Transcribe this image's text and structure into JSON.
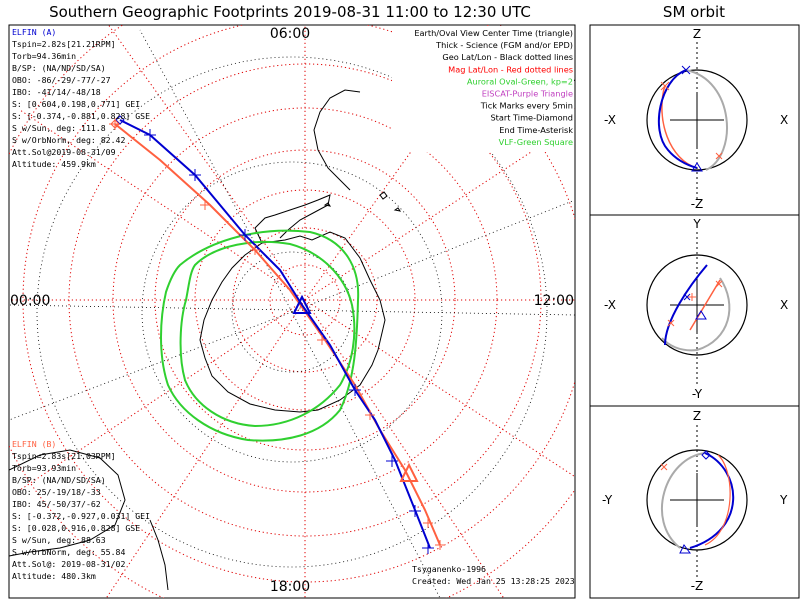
{
  "title": "Southern Geographic Footprints 2019-08-31 11:00 to 12:30 UTC",
  "sm_title": "SM orbit",
  "hour_labels": {
    "top": "06:00",
    "left": "00:00",
    "right": "12:00",
    "bottom": "18:00"
  },
  "elfin_a": {
    "name": "ELFIN (A)",
    "color": "#0000d0",
    "lines": [
      "Tspin=2.82s[21.21RPM]",
      "Torb=94.36min",
      "B/SP: (NA/ND/SD/SA)",
      "OBO: -86/-29/-77/-27",
      "IBO: -41/14/-48/18",
      "S: [0.604,0.198,0.771] GEI",
      "S: [-0.374,-0.881,0.828] GSE",
      "S w/Sun, deg: 111.8",
      "S w/OrbNorm, deg: 82.42",
      "Att.Sol@2019-08-31/09",
      "Altitude: 459.9km"
    ]
  },
  "elfin_b": {
    "name": "ELFIN (B)",
    "color": "#ff6040",
    "lines": [
      "Tspin=2.83s[21.03RPM]",
      "Torb=93.93min",
      "B/SP: (NA/ND/SD/SA)",
      "OBO: 25/-19/18/-33",
      "IBO: 45/-50/37/-62",
      "S: [-0.372,-0.927,0.031] GEI",
      "S: [0.028,0.916,0.828] GSE",
      "S w/Sun, deg: 88.63",
      "S w/OrbNorm, deg: 55.84",
      "Att.Sol@: 2019-08-31/02",
      "Altitude: 480.3km"
    ]
  },
  "legend": [
    {
      "text": "Earth/Oval View Center Time (triangle)",
      "color": "#000000"
    },
    {
      "text": "Thick - Science (FGM and/or EPD)",
      "color": "#000000"
    },
    {
      "text": "Geo Lat/Lon - Black dotted lines",
      "color": "#000000"
    },
    {
      "text": "Mag Lat/Lon - Red dotted lines",
      "color": "#ff0000"
    },
    {
      "text": "Auroral Oval-Green, kp=2",
      "color": "#30d030"
    },
    {
      "text": "EISCAT-Purple Triangle",
      "color": "#c040c0"
    },
    {
      "text": "Tick Marks every 5min",
      "color": "#000000"
    },
    {
      "text": "Start Time-Diamond",
      "color": "#000000"
    },
    {
      "text": "End Time-Asterisk",
      "color": "#000000"
    },
    {
      "text": "VLF-Green Square",
      "color": "#30d030"
    }
  ],
  "credits": {
    "model": "Tsyganenko-1996",
    "created": "Created: Wed Jan 25 13:28:25 2023"
  },
  "sm_panels": [
    {
      "top": "Z",
      "bottom": "-Z",
      "left": "-X",
      "right": "X"
    },
    {
      "top": "Y",
      "bottom": "-Y",
      "left": "-X",
      "right": "X"
    },
    {
      "top": "Z",
      "bottom": "-Z",
      "left": "-Y",
      "right": "Y"
    }
  ]
}
